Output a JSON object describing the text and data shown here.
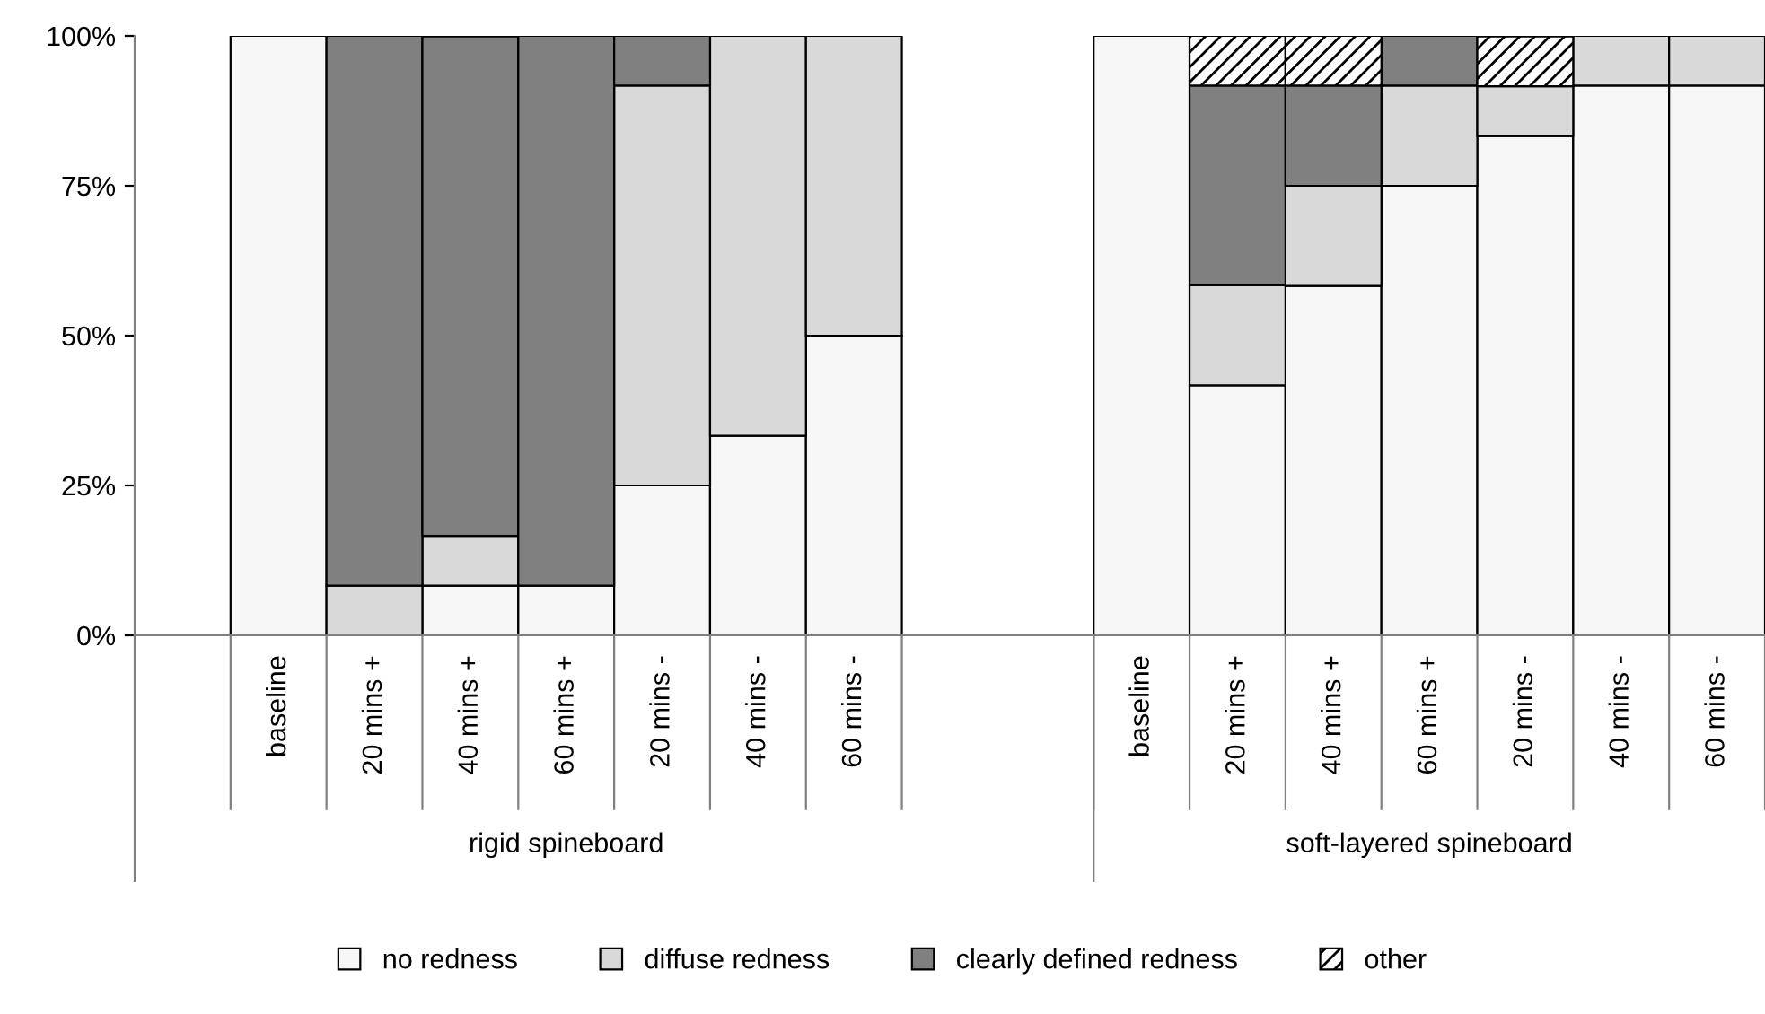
{
  "chart_data": {
    "type": "bar",
    "stacked": true,
    "categories": [
      null,
      "baseline",
      "20 mins +",
      "40 mins +",
      "60 mins +",
      "20 mins -",
      "40 mins -",
      "60 mins -",
      null,
      null,
      "baseline",
      "20 mins +",
      "40 mins +",
      "60 mins +",
      "20 mins -",
      "40 mins -",
      "60 mins -"
    ],
    "series": [
      {
        "name": "no redness",
        "color": "#f7f7f7",
        "values": [
          null,
          100,
          0,
          8.3,
          8.3,
          25,
          33.3,
          50,
          null,
          null,
          100,
          41.7,
          58.3,
          75,
          83.3,
          91.7,
          91.7
        ]
      },
      {
        "name": "diffuse redness",
        "color": "#d9d9d9",
        "values": [
          null,
          0,
          8.3,
          8.3,
          0,
          66.7,
          66.7,
          50,
          null,
          null,
          0,
          16.7,
          16.7,
          16.7,
          8.3,
          8.3,
          8.3
        ]
      },
      {
        "name": "clearly defined redness",
        "color": "#808080",
        "values": [
          null,
          0,
          91.7,
          83.3,
          91.7,
          8.3,
          0,
          0,
          null,
          null,
          0,
          33.3,
          16.7,
          8.3,
          0,
          0,
          0
        ]
      },
      {
        "name": "other",
        "color": "#000000",
        "values": [
          null,
          0,
          0,
          0,
          0,
          0,
          0,
          0,
          null,
          null,
          0,
          8.3,
          8.3,
          0,
          8.3,
          0,
          0
        ]
      }
    ],
    "ylim": [
      0,
      100
    ],
    "yticks": [
      {
        "value": 0,
        "label": "0%"
      },
      {
        "value": 25,
        "label": "25%"
      },
      {
        "value": 50,
        "label": "50%"
      },
      {
        "value": 75,
        "label": "75%"
      },
      {
        "value": 100,
        "label": "100%"
      }
    ],
    "annotations": [
      "rigid spineboard",
      "soft-layered spineboard"
    ],
    "grid": false,
    "legend": "bottom"
  }
}
